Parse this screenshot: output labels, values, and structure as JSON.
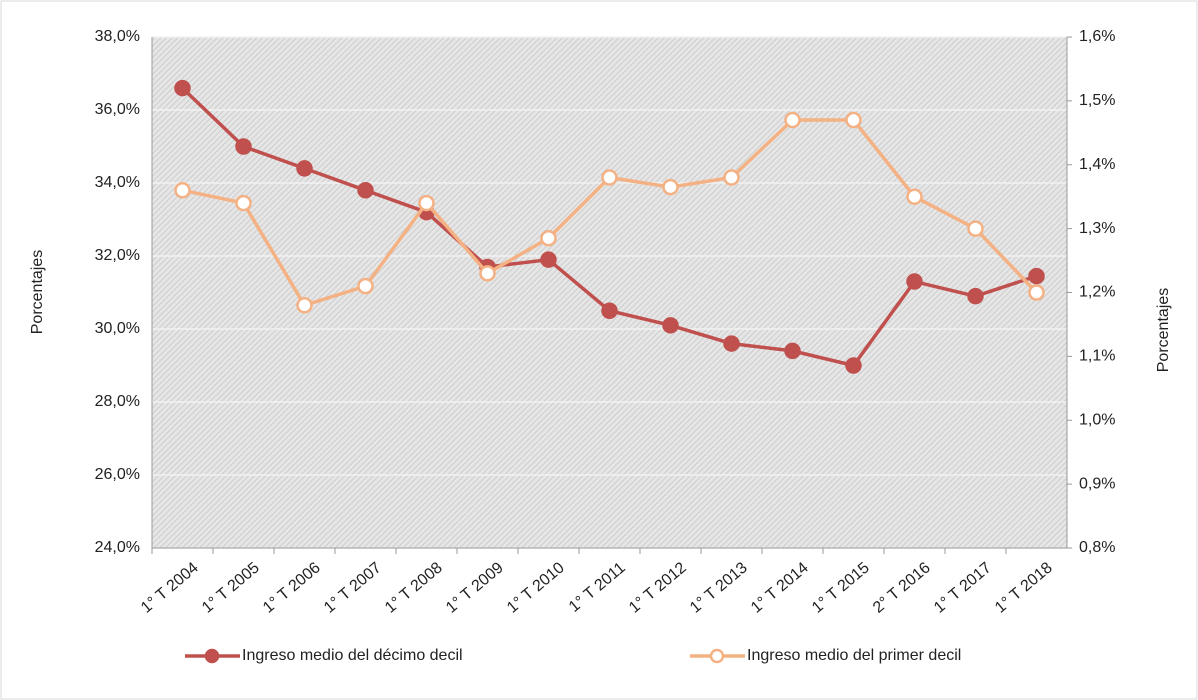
{
  "chart_data": {
    "type": "line",
    "categories": [
      "1° T 2004",
      "1° T 2005",
      "1° T 2006",
      "1° T 2007",
      "1° T 2008",
      "1° T 2009",
      "1° T 2010",
      "1° T 2011",
      "1° T 2012",
      "1° T 2013",
      "1° T 2014",
      "1° T 2015",
      "2° T 2016",
      "1° T 2017",
      "1° T 2018"
    ],
    "series": [
      {
        "name": "Ingreso medio del décimo decil",
        "color": "#c0504d",
        "marker": "filled",
        "values": [
          36.6,
          35.0,
          34.4,
          33.8,
          33.2,
          31.7,
          31.9,
          30.5,
          30.1,
          29.6,
          29.4,
          29.0,
          31.3,
          30.9,
          31.45
        ]
      },
      {
        "name": "Ingreso medio del primer decil",
        "color": "#f4b183",
        "marker": "hollow",
        "axis": "y2",
        "values": [
          1.36,
          1.34,
          1.18,
          1.21,
          1.34,
          1.23,
          1.285,
          1.38,
          1.365,
          1.38,
          1.47,
          1.47,
          1.35,
          1.3,
          1.2
        ]
      }
    ],
    "ylabel": "Porcentajes",
    "y2label": "Porcentajes",
    "ylim": [
      24,
      38
    ],
    "yticks": [
      {
        "value": 24,
        "label": "24,0%"
      },
      {
        "value": 26,
        "label": "26,0%"
      },
      {
        "value": 28,
        "label": "28,0%"
      },
      {
        "value": 30,
        "label": "30,0%"
      },
      {
        "value": 32,
        "label": "32,0%"
      },
      {
        "value": 34,
        "label": "34,0%"
      },
      {
        "value": 36,
        "label": "36,0%"
      },
      {
        "value": 38,
        "label": "38,0%"
      }
    ],
    "y2lim": [
      0.8,
      1.6
    ],
    "y2ticks": [
      {
        "value": 0.8,
        "label": "0,8%"
      },
      {
        "value": 0.9,
        "label": "0,9%"
      },
      {
        "value": 1.0,
        "label": "1,0%"
      },
      {
        "value": 1.1,
        "label": "1,1%"
      },
      {
        "value": 1.2,
        "label": "1,2%"
      },
      {
        "value": 1.3,
        "label": "1,3%"
      },
      {
        "value": 1.4,
        "label": "1,4%"
      },
      {
        "value": 1.5,
        "label": "1,5%"
      },
      {
        "value": 1.6,
        "label": "1,6%"
      }
    ],
    "grid": true,
    "legend": "bottom"
  }
}
